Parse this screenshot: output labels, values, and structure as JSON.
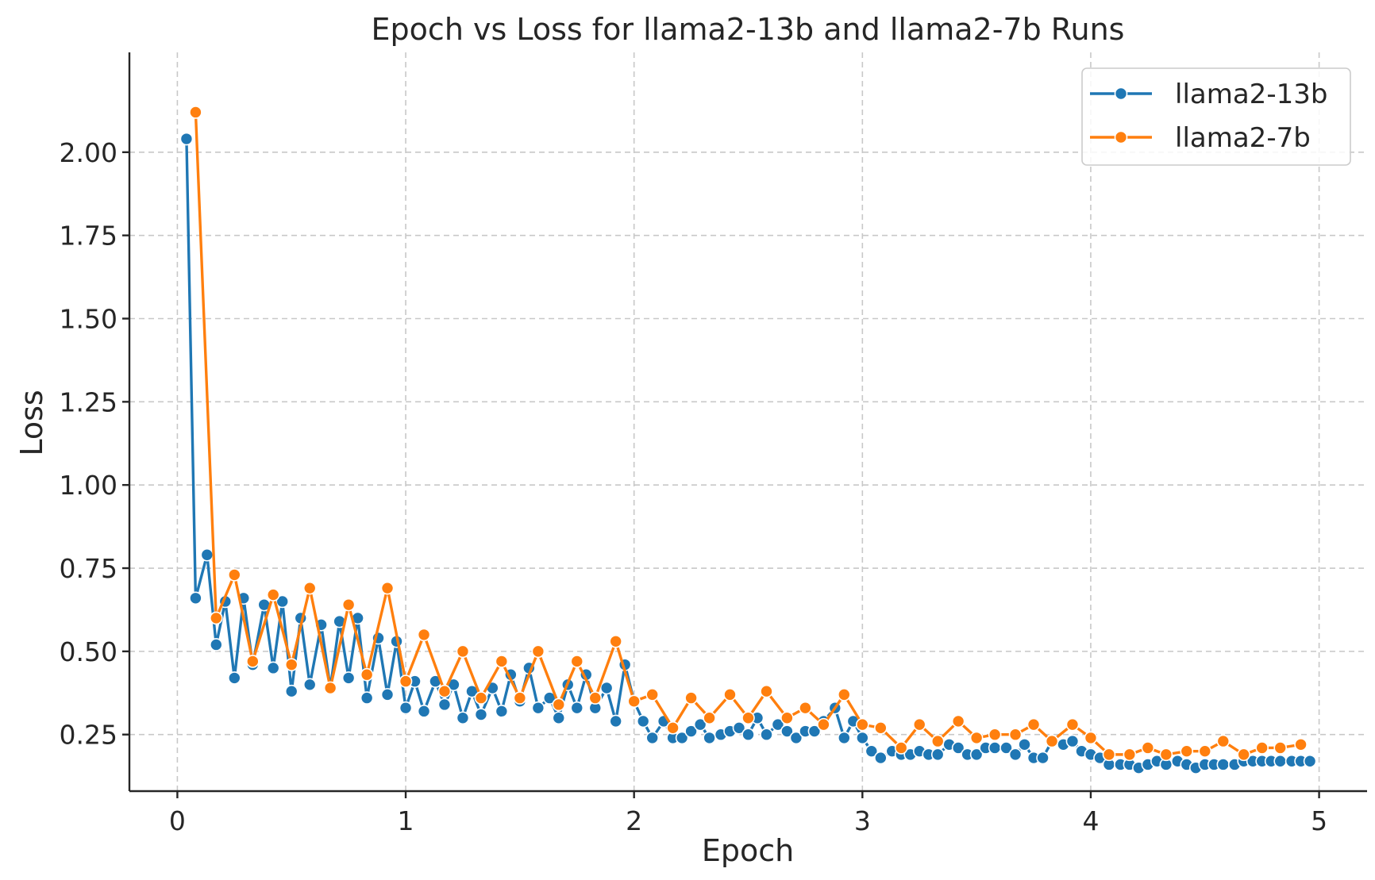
{
  "colors": {
    "llama2_13b": "#1f77b4",
    "llama2_7b": "#ff7f0e",
    "grid": "#c8c8c8",
    "axis": "#262626"
  },
  "chart_data": {
    "type": "line",
    "title": "Epoch vs Loss for llama2-13b and llama2-7b Runs",
    "xlabel": "Epoch",
    "ylabel": "Loss",
    "xlim": [
      -0.21,
      5.21
    ],
    "ylim": [
      0.08,
      2.3
    ],
    "xticks": [
      0,
      1,
      2,
      3,
      4,
      5
    ],
    "xtick_labels": [
      "0",
      "1",
      "2",
      "3",
      "4",
      "5"
    ],
    "yticks": [
      0.25,
      0.5,
      0.75,
      1.0,
      1.25,
      1.5,
      1.75,
      2.0
    ],
    "ytick_labels": [
      "0.25",
      "0.50",
      "0.75",
      "1.00",
      "1.25",
      "1.50",
      "1.75",
      "2.00"
    ],
    "grid": true,
    "legend_position": "top-right",
    "series": [
      {
        "name": "llama2-13b",
        "color_key": "llama2_13b",
        "marker": "circle",
        "x": [
          0.04,
          0.08,
          0.13,
          0.17,
          0.21,
          0.25,
          0.29,
          0.33,
          0.38,
          0.42,
          0.46,
          0.5,
          0.54,
          0.58,
          0.63,
          0.67,
          0.71,
          0.75,
          0.79,
          0.83,
          0.88,
          0.92,
          0.96,
          1.0,
          1.04,
          1.08,
          1.13,
          1.17,
          1.21,
          1.25,
          1.29,
          1.33,
          1.38,
          1.42,
          1.46,
          1.5,
          1.54,
          1.58,
          1.63,
          1.67,
          1.71,
          1.75,
          1.79,
          1.83,
          1.88,
          1.92,
          1.96,
          2.0,
          2.04,
          2.08,
          2.13,
          2.17,
          2.21,
          2.25,
          2.29,
          2.33,
          2.38,
          2.42,
          2.46,
          2.5,
          2.54,
          2.58,
          2.63,
          2.67,
          2.71,
          2.75,
          2.79,
          2.83,
          2.88,
          2.92,
          2.96,
          3.0,
          3.04,
          3.08,
          3.13,
          3.17,
          3.21,
          3.25,
          3.29,
          3.33,
          3.38,
          3.42,
          3.46,
          3.5,
          3.54,
          3.58,
          3.63,
          3.67,
          3.71,
          3.75,
          3.79,
          3.83,
          3.88,
          3.92,
          3.96,
          4.0,
          4.04,
          4.08,
          4.13,
          4.17,
          4.21,
          4.25,
          4.29,
          4.33,
          4.38,
          4.42,
          4.46,
          4.5,
          4.54,
          4.58,
          4.63,
          4.67,
          4.71,
          4.75,
          4.79,
          4.83,
          4.88,
          4.92,
          4.96
        ],
        "y": [
          2.04,
          0.66,
          0.79,
          0.52,
          0.65,
          0.42,
          0.66,
          0.46,
          0.64,
          0.45,
          0.65,
          0.38,
          0.6,
          0.4,
          0.58,
          0.39,
          0.59,
          0.42,
          0.6,
          0.36,
          0.54,
          0.37,
          0.53,
          0.33,
          0.41,
          0.32,
          0.41,
          0.34,
          0.4,
          0.3,
          0.38,
          0.31,
          0.39,
          0.32,
          0.43,
          0.35,
          0.45,
          0.33,
          0.36,
          0.3,
          0.4,
          0.33,
          0.43,
          0.33,
          0.39,
          0.29,
          0.46,
          0.35,
          0.29,
          0.24,
          0.29,
          0.24,
          0.24,
          0.26,
          0.28,
          0.24,
          0.25,
          0.26,
          0.27,
          0.25,
          0.3,
          0.25,
          0.28,
          0.26,
          0.24,
          0.26,
          0.26,
          0.29,
          0.33,
          0.24,
          0.29,
          0.24,
          0.2,
          0.18,
          0.2,
          0.19,
          0.19,
          0.2,
          0.19,
          0.19,
          0.22,
          0.21,
          0.19,
          0.19,
          0.21,
          0.21,
          0.21,
          0.19,
          0.22,
          0.18,
          0.18,
          0.23,
          0.22,
          0.23,
          0.2,
          0.19,
          0.18,
          0.16,
          0.16,
          0.16,
          0.15,
          0.16,
          0.17,
          0.16,
          0.17,
          0.16,
          0.15,
          0.16,
          0.16,
          0.16,
          0.16,
          0.17,
          0.17,
          0.17,
          0.17,
          0.17,
          0.17,
          0.17,
          0.17
        ]
      },
      {
        "name": "llama2-7b",
        "color_key": "llama2_7b",
        "marker": "circle",
        "x": [
          0.08,
          0.17,
          0.25,
          0.33,
          0.42,
          0.5,
          0.58,
          0.67,
          0.75,
          0.83,
          0.92,
          1.0,
          1.08,
          1.17,
          1.25,
          1.33,
          1.42,
          1.5,
          1.58,
          1.67,
          1.75,
          1.83,
          1.92,
          2.0,
          2.08,
          2.17,
          2.25,
          2.33,
          2.42,
          2.5,
          2.58,
          2.67,
          2.75,
          2.83,
          2.92,
          3.0,
          3.08,
          3.17,
          3.25,
          3.33,
          3.42,
          3.5,
          3.58,
          3.67,
          3.75,
          3.83,
          3.92,
          4.0,
          4.08,
          4.17,
          4.25,
          4.33,
          4.42,
          4.5,
          4.58,
          4.67,
          4.75,
          4.83,
          4.92
        ],
        "y": [
          2.12,
          0.6,
          0.73,
          0.47,
          0.67,
          0.46,
          0.69,
          0.39,
          0.64,
          0.43,
          0.69,
          0.41,
          0.55,
          0.38,
          0.5,
          0.36,
          0.47,
          0.36,
          0.5,
          0.34,
          0.47,
          0.36,
          0.53,
          0.35,
          0.37,
          0.27,
          0.36,
          0.3,
          0.37,
          0.3,
          0.38,
          0.3,
          0.33,
          0.28,
          0.37,
          0.28,
          0.27,
          0.21,
          0.28,
          0.23,
          0.29,
          0.24,
          0.25,
          0.25,
          0.28,
          0.23,
          0.28,
          0.24,
          0.19,
          0.19,
          0.21,
          0.19,
          0.2,
          0.2,
          0.23,
          0.19,
          0.21,
          0.21,
          0.22
        ]
      }
    ]
  }
}
